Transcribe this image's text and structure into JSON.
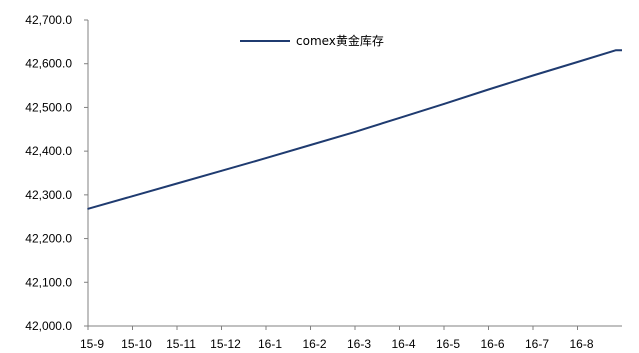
{
  "chart_data": {
    "type": "line",
    "title": "",
    "xlabel": "",
    "ylabel": "",
    "ylim": [
      42000,
      42700
    ],
    "y_ticks": [
      42000,
      42100,
      42200,
      42300,
      42400,
      42500,
      42600,
      42700
    ],
    "y_tick_labels": [
      "42,000.0",
      "42,100.0",
      "42,200.0",
      "42,300.0",
      "42,400.0",
      "42,500.0",
      "42,600.0",
      "42,700.0"
    ],
    "x_tick_labels": [
      "15-9",
      "15-10",
      "15-11",
      "15-12",
      "16-1",
      "16-2",
      "16-3",
      "16-4",
      "16-5",
      "16-6",
      "16-7",
      "16-8"
    ],
    "grid": false,
    "legend_position": "top-center",
    "series": [
      {
        "name": "comex黄金库存",
        "color": "#1f3b70",
        "x": [
          "15-9",
          "15-10",
          "15-11",
          "15-12",
          "16-1",
          "16-2",
          "16-3",
          "16-4",
          "16-5",
          "16-6",
          "16-7",
          "16-8"
        ],
        "values": [
          42268,
          42297,
          42326,
          42355,
          42384,
          42414,
          42444,
          42476,
          42508,
          42541,
          42573,
          42604
        ]
      }
    ]
  }
}
